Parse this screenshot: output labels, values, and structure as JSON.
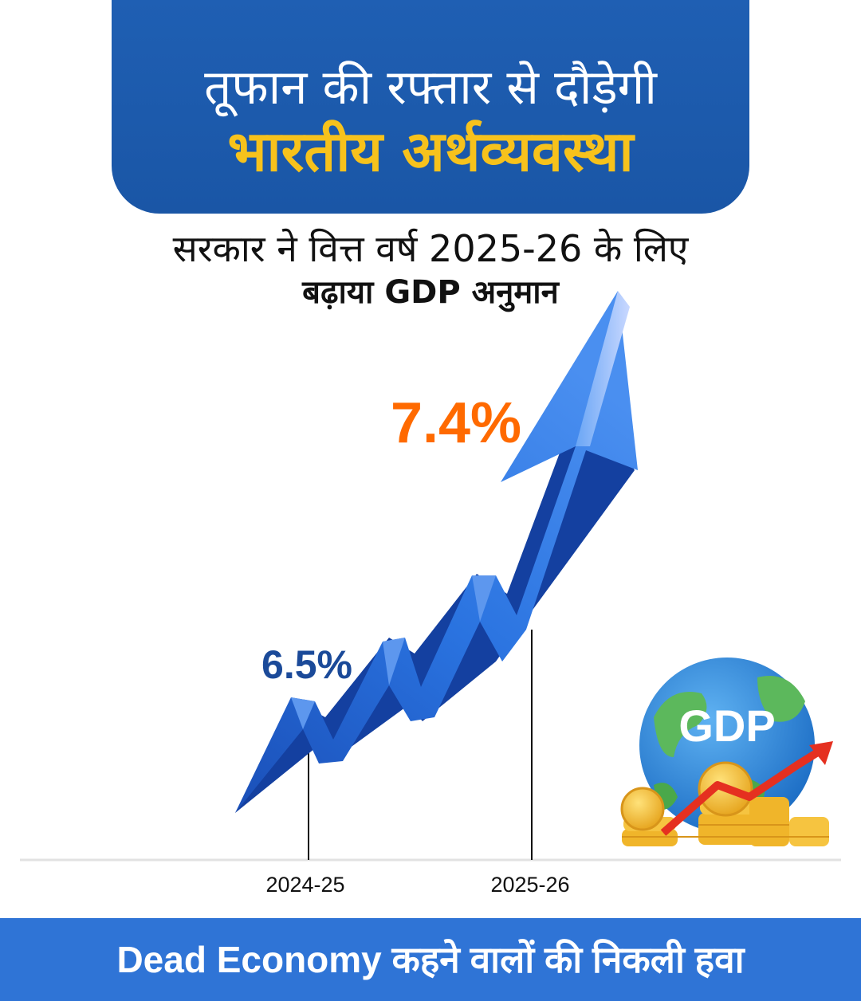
{
  "header": {
    "line1": "तूफान की रफ्तार से दौड़ेगी",
    "line2": "भारतीय अर्थव्यवस्था"
  },
  "subtitle": {
    "line1": "सरकार ने वित्त वर्ष 2025-26 के लिए",
    "line2": "बढ़ाया GDP अनुमान"
  },
  "chart_data": {
    "type": "line",
    "categories": [
      "2024-25",
      "2025-26"
    ],
    "values": [
      6.5,
      7.4
    ],
    "data_labels": [
      "6.5%",
      "7.4%"
    ],
    "title": "",
    "xlabel": "",
    "ylabel": ""
  },
  "illustration": {
    "label": "GDP",
    "icon": "globe-coins-icon"
  },
  "colors": {
    "header_bg": "#1f5fb3",
    "header_accent": "#f7c21c",
    "arrow_blue": "#1e63d6",
    "value_blue": "#1b4a99",
    "value_orange": "#ff6a00",
    "footer_bg": "#2f74d6"
  },
  "footer": {
    "text": "Dead Economy कहने वालों की निकली हवा"
  }
}
